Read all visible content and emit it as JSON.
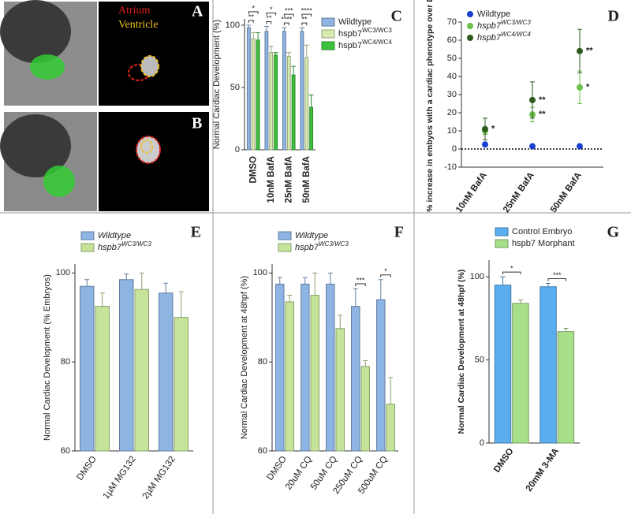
{
  "image_panels": [
    {
      "letter": "A",
      "labels": [
        "Atrium",
        "Ventricle"
      ]
    },
    {
      "letter": "B"
    }
  ],
  "chart_data": [
    {
      "type": "bar",
      "letter": "C",
      "ylabel": "Normal Cardiac Development (%)",
      "categories": [
        "DMSO",
        "10nM BafA",
        "25nM BafA",
        "50nM BafA"
      ],
      "series": [
        {
          "name": "Wildtype",
          "color": "#8eb4e3",
          "values": [
            98,
            95,
            95,
            95
          ],
          "errors": [
            2,
            4,
            3,
            3
          ]
        },
        {
          "name": "hspb7",
          "name_sup": "WC3/WC3",
          "color": "#d7eab0",
          "values": [
            89,
            78,
            75,
            74
          ],
          "errors": [
            5,
            5,
            3,
            10
          ]
        },
        {
          "name": "hspb7",
          "name_sup": "WC4/WC4",
          "color": "#3cc13c",
          "values": [
            88,
            76,
            60,
            34
          ],
          "errors": [
            6,
            2,
            7,
            10
          ]
        }
      ],
      "annotations": [
        {
          "category": "DMSO",
          "labels": [
            "**",
            "*"
          ]
        },
        {
          "category": "10nM BafA",
          "labels": [
            "**",
            "*"
          ]
        },
        {
          "category": "25nM BafA",
          "labels": [
            "****",
            "***"
          ]
        },
        {
          "category": "50nM BafA",
          "labels": [
            "**",
            "****"
          ]
        }
      ],
      "ylim": [
        0,
        105
      ],
      "yticks": [
        0,
        50,
        100
      ],
      "legend": "right"
    },
    {
      "type": "scatter",
      "letter": "D",
      "ylabel": "% increase in embyos with a cardiac phenotype over DMSO",
      "categories": [
        "10nM BafA",
        "25nM BafA",
        "50nM BafA"
      ],
      "series": [
        {
          "name": "Wildtype",
          "color": "#1a3fcf",
          "values": [
            2.5,
            1.5,
            1.5
          ],
          "errors": [
            1,
            0.5,
            1
          ]
        },
        {
          "name": "hspb7",
          "name_sup": "WC3/WC3",
          "italic": true,
          "color": "#6cbf4a",
          "values": [
            10,
            19,
            34
          ],
          "errors": [
            2,
            4,
            9
          ],
          "significance": [
            null,
            "**",
            "*"
          ]
        },
        {
          "name": "hspb7",
          "name_sup": "WC4/WC4",
          "italic": true,
          "color": "#2f5a1f",
          "values": [
            11,
            27,
            54
          ],
          "errors": [
            6,
            10,
            12
          ],
          "significance": [
            "*",
            "**",
            "**"
          ]
        }
      ],
      "hline": 0,
      "ylim": [
        -10,
        70
      ],
      "yticks": [
        -10,
        0,
        10,
        20,
        30,
        40,
        50,
        60,
        70
      ],
      "legend": "top-left"
    },
    {
      "type": "bar",
      "letter": "E",
      "ylabel": "Normal Cardiac Development (% Embryos)",
      "categories": [
        "DMSO",
        "1µM MG132",
        "2µM MG132"
      ],
      "series": [
        {
          "name": "Wildtype",
          "italic": true,
          "color": "#8eb4e3",
          "values": [
            97,
            98.5,
            95.5
          ],
          "errors": [
            1.5,
            1.3,
            2.2
          ]
        },
        {
          "name": "hspb7",
          "name_sup": "WC3/WC3",
          "italic": true,
          "color": "#c5e49a",
          "values": [
            92.5,
            96.3,
            90
          ],
          "errors": [
            3,
            3.7,
            5.8
          ]
        }
      ],
      "ylim": [
        60,
        102
      ],
      "yticks": [
        60,
        80,
        100
      ],
      "legend": "top"
    },
    {
      "type": "bar",
      "letter": "F",
      "ylabel": "Normal Cardiac Development at 48hpf (%)",
      "categories": [
        "DMSO",
        "20uM CQ",
        "50uM CQ",
        "250uM CQ",
        "500uM CQ"
      ],
      "series": [
        {
          "name": "Wildtype",
          "italic": true,
          "color": "#8eb4e3",
          "values": [
            97.5,
            97.5,
            97.5,
            92.5,
            94
          ],
          "errors": [
            1.5,
            1.5,
            2.5,
            4,
            4.5
          ]
        },
        {
          "name": "hspb7",
          "name_sup": "WC3/WC3",
          "italic": true,
          "color": "#c5e49a",
          "values": [
            93.5,
            95,
            87.5,
            79,
            70.5
          ],
          "errors": [
            1.5,
            5,
            3,
            1.3,
            6
          ]
        }
      ],
      "annotations": [
        {
          "category": "250uM CQ",
          "labels": [
            "***"
          ]
        },
        {
          "category": "500uM CQ",
          "labels": [
            "*"
          ]
        }
      ],
      "ylim": [
        60,
        102
      ],
      "yticks": [
        60,
        80,
        100
      ],
      "legend": "top"
    },
    {
      "type": "bar",
      "letter": "G",
      "ylabel": "Normal Cardiac Development at 48hpf (%)",
      "categories": [
        "DMSO",
        "20mM 3-MA"
      ],
      "series": [
        {
          "name": "Control Embryo",
          "color": "#5aaef0",
          "values": [
            95,
            94
          ],
          "errors": [
            5,
            2
          ]
        },
        {
          "name": "hspb7 Morphant",
          "color": "#a8e08a",
          "values": [
            84,
            67
          ],
          "errors": [
            2,
            2
          ]
        }
      ],
      "annotations": [
        {
          "category": "DMSO",
          "labels": [
            "*"
          ]
        },
        {
          "category": "20mM 3-MA",
          "labels": [
            "***"
          ]
        }
      ],
      "ylim": [
        0,
        110
      ],
      "yticks": [
        0,
        50,
        100
      ],
      "legend": "top"
    }
  ]
}
